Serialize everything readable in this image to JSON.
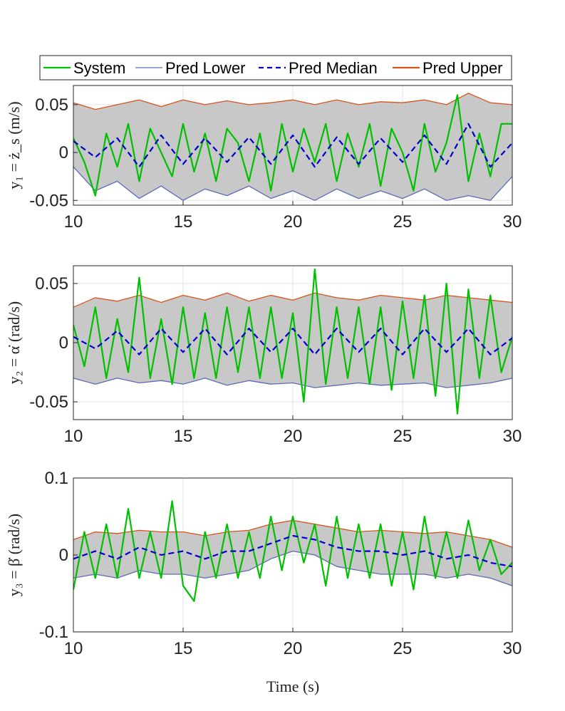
{
  "legend": {
    "entries": [
      {
        "label": "System",
        "color": "#00c000",
        "dash": "solid"
      },
      {
        "label": "Pred Lower",
        "color": "#5b6bb8",
        "dash": "solid"
      },
      {
        "label": "Pred Median",
        "color": "#0000cc",
        "dash": "dashed"
      },
      {
        "label": "Pred Upper",
        "color": "#d95319",
        "dash": "solid"
      }
    ],
    "placement": "top"
  },
  "band_color": "#c8c8c8",
  "chart_data": [
    {
      "type": "line",
      "ylabel": "y₁ = ż_s (m/s)",
      "xlabel": "",
      "xlim": [
        10,
        30
      ],
      "ylim": [
        -0.055,
        0.07
      ],
      "xticks": [
        10,
        15,
        20,
        25,
        30
      ],
      "xtick_labels": [
        "10",
        "15",
        "20",
        "25",
        "30"
      ],
      "yticks": [
        -0.05,
        0,
        0.05
      ],
      "ytick_labels": [
        "-0.05",
        "0",
        "0.05"
      ],
      "grid": true,
      "series": [
        {
          "name": "Pred Upper",
          "x": [
            10,
            11,
            12,
            13,
            14,
            15,
            16,
            17,
            18,
            19,
            20,
            21,
            22,
            23,
            24,
            25,
            26,
            27,
            28,
            29,
            30
          ],
          "values": [
            0.052,
            0.045,
            0.05,
            0.055,
            0.048,
            0.055,
            0.05,
            0.054,
            0.05,
            0.052,
            0.055,
            0.05,
            0.055,
            0.05,
            0.053,
            0.052,
            0.055,
            0.05,
            0.062,
            0.052,
            0.05
          ]
        },
        {
          "name": "Pred Median",
          "x": [
            10,
            11,
            12,
            13,
            14,
            15,
            16,
            17,
            18,
            19,
            20,
            21,
            22,
            23,
            24,
            25,
            26,
            27,
            28,
            29,
            30
          ],
          "values": [
            0.012,
            -0.005,
            0.015,
            -0.015,
            0.018,
            -0.012,
            0.015,
            -0.01,
            0.016,
            -0.012,
            0.018,
            -0.015,
            0.016,
            -0.012,
            0.015,
            -0.01,
            0.018,
            -0.012,
            0.03,
            -0.015,
            0.01
          ]
        },
        {
          "name": "Pred Lower",
          "x": [
            10,
            11,
            12,
            13,
            14,
            15,
            16,
            17,
            18,
            19,
            20,
            21,
            22,
            23,
            24,
            25,
            26,
            27,
            28,
            29,
            30
          ],
          "values": [
            -0.015,
            -0.04,
            -0.03,
            -0.048,
            -0.035,
            -0.05,
            -0.038,
            -0.045,
            -0.035,
            -0.048,
            -0.04,
            -0.05,
            -0.038,
            -0.048,
            -0.04,
            -0.048,
            -0.038,
            -0.05,
            -0.045,
            -0.05,
            -0.025
          ]
        },
        {
          "name": "System",
          "x": [
            10,
            10.5,
            11,
            11.5,
            12,
            12.5,
            13,
            13.5,
            14,
            14.5,
            15,
            15.5,
            16,
            16.5,
            17,
            17.5,
            18,
            18.5,
            19,
            19.5,
            20,
            20.5,
            21,
            21.5,
            22,
            22.5,
            23,
            23.5,
            24,
            24.5,
            25,
            25.5,
            26,
            26.5,
            27,
            27.5,
            28,
            28.5,
            29,
            29.5,
            30
          ],
          "values": [
            0.015,
            -0.01,
            -0.045,
            0.02,
            -0.015,
            0.03,
            -0.03,
            0.025,
            0.0,
            -0.025,
            0.03,
            -0.02,
            0.02,
            -0.03,
            0.025,
            0.01,
            -0.03,
            0.02,
            -0.04,
            0.03,
            -0.02,
            0.025,
            -0.01,
            0.03,
            -0.03,
            0.02,
            -0.015,
            0.03,
            -0.035,
            0.025,
            0.0,
            -0.04,
            0.03,
            -0.02,
            0.01,
            0.06,
            -0.03,
            0.02,
            -0.025,
            0.03,
            0.03
          ]
        }
      ]
    },
    {
      "type": "line",
      "ylabel": "y₂ = α̇ (rad/s)",
      "xlabel": "",
      "xlim": [
        10,
        30
      ],
      "ylim": [
        -0.065,
        0.065
      ],
      "xticks": [
        10,
        15,
        20,
        25,
        30
      ],
      "xtick_labels": [
        "10",
        "15",
        "20",
        "25",
        "30"
      ],
      "yticks": [
        -0.05,
        0,
        0.05
      ],
      "ytick_labels": [
        "-0.05",
        "0",
        "0.05"
      ],
      "grid": true,
      "series": [
        {
          "name": "Pred Upper",
          "x": [
            10,
            11,
            12,
            13,
            14,
            15,
            16,
            17,
            18,
            19,
            20,
            21,
            22,
            23,
            24,
            25,
            26,
            27,
            28,
            29,
            30
          ],
          "values": [
            0.03,
            0.038,
            0.035,
            0.04,
            0.034,
            0.04,
            0.036,
            0.042,
            0.035,
            0.04,
            0.036,
            0.042,
            0.038,
            0.036,
            0.04,
            0.038,
            0.036,
            0.04,
            0.038,
            0.036,
            0.034
          ]
        },
        {
          "name": "Pred Median",
          "x": [
            10,
            11,
            12,
            13,
            14,
            15,
            16,
            17,
            18,
            19,
            20,
            21,
            22,
            23,
            24,
            25,
            26,
            27,
            28,
            29,
            30
          ],
          "values": [
            0.005,
            -0.005,
            0.01,
            -0.01,
            0.012,
            -0.008,
            0.012,
            -0.01,
            0.012,
            -0.008,
            0.012,
            -0.01,
            0.012,
            -0.008,
            0.012,
            -0.01,
            0.012,
            -0.008,
            0.012,
            -0.01,
            0.004
          ]
        },
        {
          "name": "Pred Lower",
          "x": [
            10,
            11,
            12,
            13,
            14,
            15,
            16,
            17,
            18,
            19,
            20,
            21,
            22,
            23,
            24,
            25,
            26,
            27,
            28,
            29,
            30
          ],
          "values": [
            -0.03,
            -0.035,
            -0.03,
            -0.034,
            -0.032,
            -0.035,
            -0.03,
            -0.036,
            -0.032,
            -0.035,
            -0.034,
            -0.038,
            -0.036,
            -0.034,
            -0.036,
            -0.035,
            -0.034,
            -0.038,
            -0.036,
            -0.034,
            -0.03
          ]
        },
        {
          "name": "System",
          "x": [
            10,
            10.5,
            11,
            11.5,
            12,
            12.5,
            13,
            13.5,
            14,
            14.5,
            15,
            15.5,
            16,
            16.5,
            17,
            17.5,
            18,
            18.5,
            19,
            19.5,
            20,
            20.5,
            21,
            21.5,
            22,
            22.5,
            23,
            23.5,
            24,
            24.5,
            25,
            25.5,
            26,
            26.5,
            27,
            27.5,
            28,
            28.5,
            29,
            29.5,
            30
          ],
          "values": [
            0.015,
            -0.02,
            0.03,
            -0.03,
            0.02,
            -0.025,
            0.055,
            -0.03,
            0.02,
            -0.035,
            0.03,
            -0.03,
            0.025,
            -0.03,
            0.03,
            -0.025,
            0.03,
            -0.03,
            0.03,
            -0.03,
            0.025,
            -0.05,
            0.062,
            -0.035,
            0.03,
            -0.03,
            0.03,
            -0.035,
            0.03,
            -0.04,
            0.035,
            -0.03,
            0.04,
            -0.045,
            0.05,
            -0.06,
            0.045,
            -0.03,
            0.04,
            -0.025,
            0.005
          ]
        }
      ]
    },
    {
      "type": "line",
      "ylabel": "y₃ = β̇ (rad/s)",
      "xlabel": "Time (s)",
      "xlim": [
        10,
        30
      ],
      "ylim": [
        -0.1,
        0.1
      ],
      "xticks": [
        10,
        15,
        20,
        25,
        30
      ],
      "xtick_labels": [
        "10",
        "15",
        "20",
        "25",
        "30"
      ],
      "yticks": [
        -0.1,
        0,
        0.1
      ],
      "ytick_labels": [
        "-0.1",
        "0",
        "0.1"
      ],
      "grid": true,
      "series": [
        {
          "name": "Pred Upper",
          "x": [
            10,
            11,
            12,
            13,
            14,
            15,
            16,
            17,
            18,
            19,
            20,
            21,
            22,
            23,
            24,
            25,
            26,
            27,
            28,
            29,
            30
          ],
          "values": [
            0.02,
            0.03,
            0.028,
            0.032,
            0.03,
            0.03,
            0.025,
            0.03,
            0.032,
            0.04,
            0.045,
            0.04,
            0.035,
            0.03,
            0.032,
            0.03,
            0.028,
            0.03,
            0.025,
            0.02,
            0.01
          ]
        },
        {
          "name": "Pred Median",
          "x": [
            10,
            11,
            12,
            13,
            14,
            15,
            16,
            17,
            18,
            19,
            20,
            21,
            22,
            23,
            24,
            25,
            26,
            27,
            28,
            29,
            30
          ],
          "values": [
            -0.005,
            0.005,
            -0.005,
            0.01,
            0.0,
            0.005,
            -0.005,
            0.005,
            0.005,
            0.015,
            0.025,
            0.02,
            0.01,
            0.005,
            0.005,
            0.0,
            0.005,
            -0.005,
            0.0,
            -0.01,
            -0.015
          ]
        },
        {
          "name": "Pred Lower",
          "x": [
            10,
            11,
            12,
            13,
            14,
            15,
            16,
            17,
            18,
            19,
            20,
            21,
            22,
            23,
            24,
            25,
            26,
            27,
            28,
            29,
            30
          ],
          "values": [
            -0.03,
            -0.025,
            -0.03,
            -0.02,
            -0.025,
            -0.025,
            -0.03,
            -0.025,
            -0.02,
            -0.005,
            0.005,
            0.0,
            -0.015,
            -0.02,
            -0.025,
            -0.025,
            -0.025,
            -0.03,
            -0.025,
            -0.03,
            -0.04
          ]
        },
        {
          "name": "System",
          "x": [
            10,
            10.5,
            11,
            11.5,
            12,
            12.5,
            13,
            13.5,
            14,
            14.5,
            15,
            15.5,
            16,
            16.5,
            17,
            17.5,
            18,
            18.5,
            19,
            19.5,
            20,
            20.5,
            21,
            21.5,
            22,
            22.5,
            23,
            23.5,
            24,
            24.5,
            25,
            25.5,
            26,
            26.5,
            27,
            27.5,
            28,
            28.5,
            29,
            29.5,
            30
          ],
          "values": [
            -0.045,
            0.03,
            -0.03,
            0.04,
            -0.03,
            0.06,
            -0.03,
            0.03,
            -0.03,
            0.07,
            -0.04,
            -0.06,
            0.03,
            -0.03,
            0.04,
            -0.03,
            0.03,
            -0.03,
            0.05,
            -0.02,
            0.05,
            -0.01,
            0.04,
            -0.04,
            0.05,
            -0.03,
            0.04,
            -0.03,
            0.04,
            -0.04,
            0.03,
            -0.045,
            0.05,
            -0.03,
            0.03,
            -0.03,
            0.045,
            -0.02,
            0.02,
            -0.025,
            -0.01
          ]
        }
      ]
    }
  ]
}
